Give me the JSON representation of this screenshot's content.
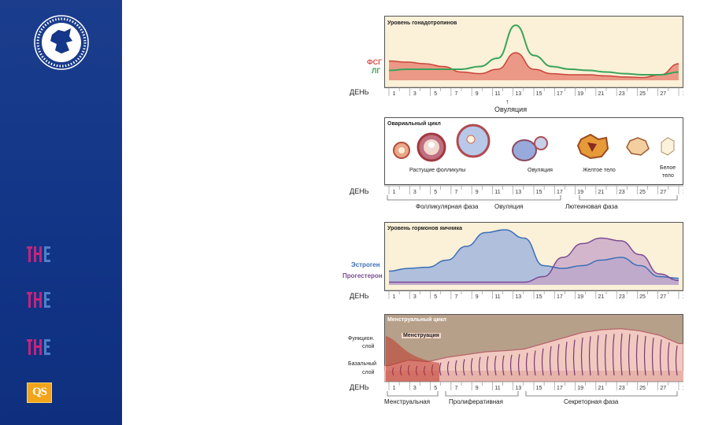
{
  "colors": {
    "sidebar": "#143789",
    "fsh": "#d9534f",
    "lh": "#3aa35a",
    "estrogen": "#3b6fb6",
    "progesterone": "#7b4b94",
    "panel_bg": "#fbf0d8"
  },
  "icons": {
    "emblem": "university-emblem-icon",
    "rank": "the-ranking-logo-icon",
    "qs": "qs-ranking-logo-icon"
  },
  "sidebar": {
    "qs_label": "QS"
  },
  "day_label": "ДЕНЬ",
  "day_ticks": [
    "1",
    "3",
    "5",
    "7",
    "9",
    "11",
    "13",
    "15",
    "17",
    "19",
    "21",
    "23",
    "25",
    "27",
    "1"
  ],
  "panel1": {
    "title": "Уровень гонадотропинов",
    "fsh": "ФСГ",
    "lh": "ЛГ",
    "ovulation": "Овуляция"
  },
  "panel2": {
    "title": "Овариальный цикл",
    "growing": "Растущие фолликулы",
    "ovulation_inner": "Овуляция",
    "yellow_body": "Желтое тело",
    "white_body_1": "Белое",
    "white_body_2": "тело",
    "phase_follicular": "Фолликулярная фаза",
    "phase_ovulation": "Овуляция",
    "phase_luteal": "Лютеиновая фаза"
  },
  "panel3": {
    "title": "Уровень гормонов яичника",
    "estrogen": "Эстроген",
    "progesterone": "Прогестерон"
  },
  "panel4": {
    "title": "Менструальный цикл",
    "menstruation": "Менструация",
    "functional_1": "Функцион.",
    "functional_2": "слой",
    "basal_1": "Базальный",
    "basal_2": "слой",
    "phase_menstrual": "Менструальная",
    "phase_proliferative": "Пролиферативная",
    "phase_secretory": "Секреторная фаза"
  },
  "chart_data": [
    {
      "type": "line",
      "x": [
        1,
        3,
        5,
        7,
        9,
        11,
        12,
        13,
        14,
        15,
        17,
        19,
        21,
        23,
        25,
        27,
        1
      ],
      "series": [
        {
          "name": "ФСГ",
          "values": [
            0.35,
            0.33,
            0.3,
            0.25,
            0.15,
            0.12,
            0.2,
            0.5,
            0.2,
            0.12,
            0.1,
            0.1,
            0.08,
            0.06,
            0.05,
            0.1,
            0.3
          ]
        },
        {
          "name": "ЛГ",
          "values": [
            0.18,
            0.2,
            0.2,
            0.2,
            0.2,
            0.25,
            0.4,
            1.0,
            0.45,
            0.25,
            0.2,
            0.18,
            0.15,
            0.12,
            0.1,
            0.1,
            0.15
          ]
        }
      ]
    },
    {
      "type": "area",
      "x": [
        1,
        3,
        5,
        7,
        9,
        11,
        12,
        13,
        15,
        17,
        19,
        21,
        23,
        25,
        27,
        1
      ],
      "series": [
        {
          "name": "Эстроген",
          "values": [
            0.25,
            0.3,
            0.32,
            0.45,
            0.7,
            0.95,
            1.0,
            0.85,
            0.35,
            0.3,
            0.35,
            0.45,
            0.5,
            0.35,
            0.15,
            0.12
          ]
        },
        {
          "name": "Прогестерон",
          "values": [
            0.05,
            0.05,
            0.05,
            0.05,
            0.05,
            0.05,
            0.05,
            0.05,
            0.15,
            0.5,
            0.75,
            0.85,
            0.8,
            0.55,
            0.2,
            0.08
          ]
        }
      ]
    }
  ]
}
